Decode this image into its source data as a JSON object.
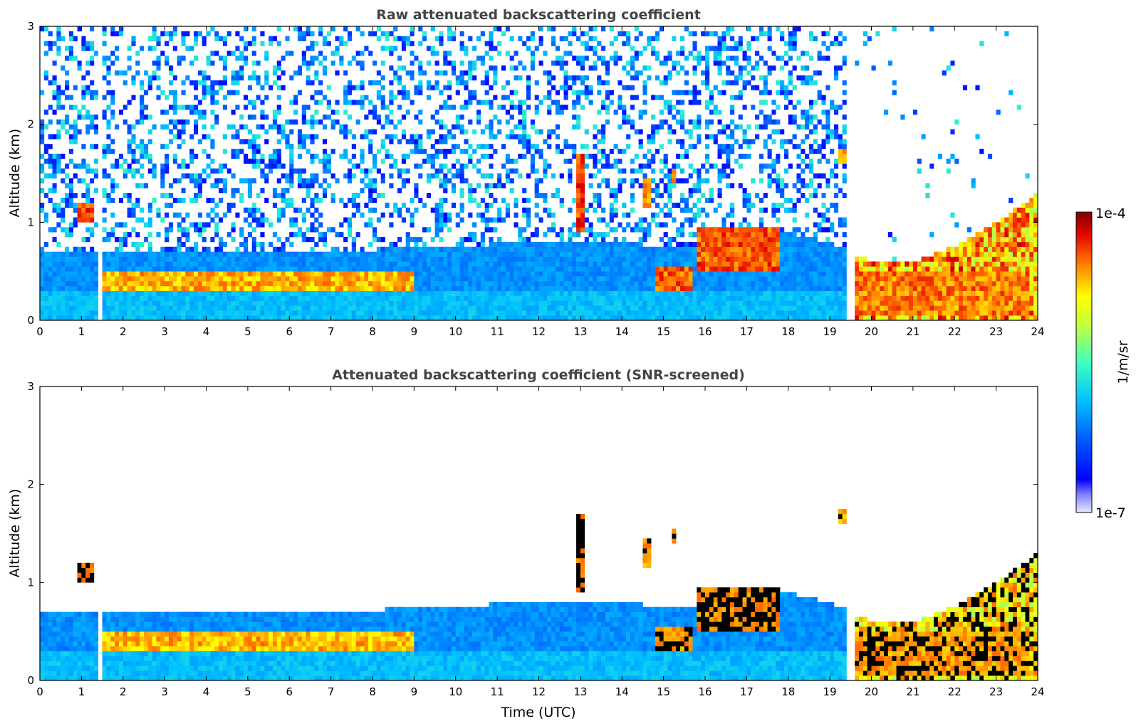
{
  "chart_data": [
    {
      "type": "heatmap",
      "title": "Raw attenuated backscattering coefficient",
      "xlabel": "",
      "ylabel": "Altitude (km)",
      "xlim": [
        0,
        24
      ],
      "ylim": [
        0,
        3
      ],
      "x_ticks": [
        "0",
        "1",
        "2",
        "3",
        "4",
        "5",
        "6",
        "7",
        "8",
        "9",
        "10",
        "11",
        "12",
        "13",
        "14",
        "15",
        "16",
        "17",
        "18",
        "19",
        "20",
        "21",
        "22",
        "23",
        "24"
      ],
      "y_ticks": [
        "0",
        "1",
        "2",
        "3"
      ],
      "x_unit": "hour UTC",
      "y_unit": "km",
      "boundary_layer_top_km": [
        0.72,
        0.72,
        0.72,
        0.7,
        0.7,
        0.7,
        0.7,
        0.72,
        0.72,
        0.74,
        0.76,
        0.78,
        0.8,
        0.82,
        0.8,
        0.75,
        0.72,
        0.8,
        0.9,
        0.8,
        0.6,
        0.6,
        0.75,
        1.0,
        1.3
      ],
      "features": [
        {
          "name": "cloud",
          "t0": 0.95,
          "t1": 1.25,
          "z0": 1.0,
          "z1": 1.2,
          "level": 0.95
        },
        {
          "name": "cloud",
          "t0": 12.9,
          "t1": 13.05,
          "z0": 0.9,
          "z1": 1.7,
          "level": 0.95
        },
        {
          "name": "cloud",
          "t0": 14.55,
          "t1": 14.65,
          "z0": 1.15,
          "z1": 1.45,
          "level": 0.9
        },
        {
          "name": "cloud",
          "t0": 15.2,
          "t1": 15.35,
          "z0": 1.4,
          "z1": 1.55,
          "level": 0.95
        },
        {
          "name": "cloud",
          "t0": 19.2,
          "t1": 19.35,
          "z0": 1.6,
          "z1": 1.75,
          "level": 0.9
        },
        {
          "name": "aerosol-layer",
          "t0": 1.5,
          "t1": 9.0,
          "z0": 0.32,
          "z1": 0.5,
          "level": 0.85
        },
        {
          "name": "aerosol-layer",
          "t0": 14.8,
          "t1": 15.7,
          "z0": 0.28,
          "z1": 0.55,
          "level": 0.92
        },
        {
          "name": "aerosol-layer",
          "t0": 15.8,
          "t1": 17.8,
          "z0": 0.5,
          "z1": 0.95,
          "level": 0.93
        },
        {
          "name": "aerosol-layer",
          "t0": 19.5,
          "t1": 23.8,
          "z0": 0.05,
          "z1": 0.5,
          "level": 0.9
        }
      ],
      "data_gaps_hours": [
        1.45,
        19.5
      ]
    },
    {
      "type": "heatmap",
      "title": "Attenuated backscattering coefficient (SNR-screened)",
      "xlabel": "Time (UTC)",
      "ylabel": "Altitude (km)",
      "xlim": [
        0,
        24
      ],
      "ylim": [
        0,
        3
      ],
      "x_ticks": [
        "0",
        "1",
        "2",
        "3",
        "4",
        "5",
        "6",
        "7",
        "8",
        "9",
        "10",
        "11",
        "12",
        "13",
        "14",
        "15",
        "16",
        "17",
        "18",
        "19",
        "20",
        "21",
        "22",
        "23",
        "24"
      ],
      "y_ticks": [
        "0",
        "1",
        "2",
        "3"
      ],
      "x_unit": "hour UTC",
      "y_unit": "km",
      "screened": true
    }
  ],
  "colorbar": {
    "label": "1/m/sr",
    "min_label": "1e-7",
    "max_label": "1e-4",
    "colormap": "jet",
    "scale": "log"
  },
  "colors": {
    "axis": "#000000",
    "title": "#444444",
    "saturated": "#000000"
  }
}
